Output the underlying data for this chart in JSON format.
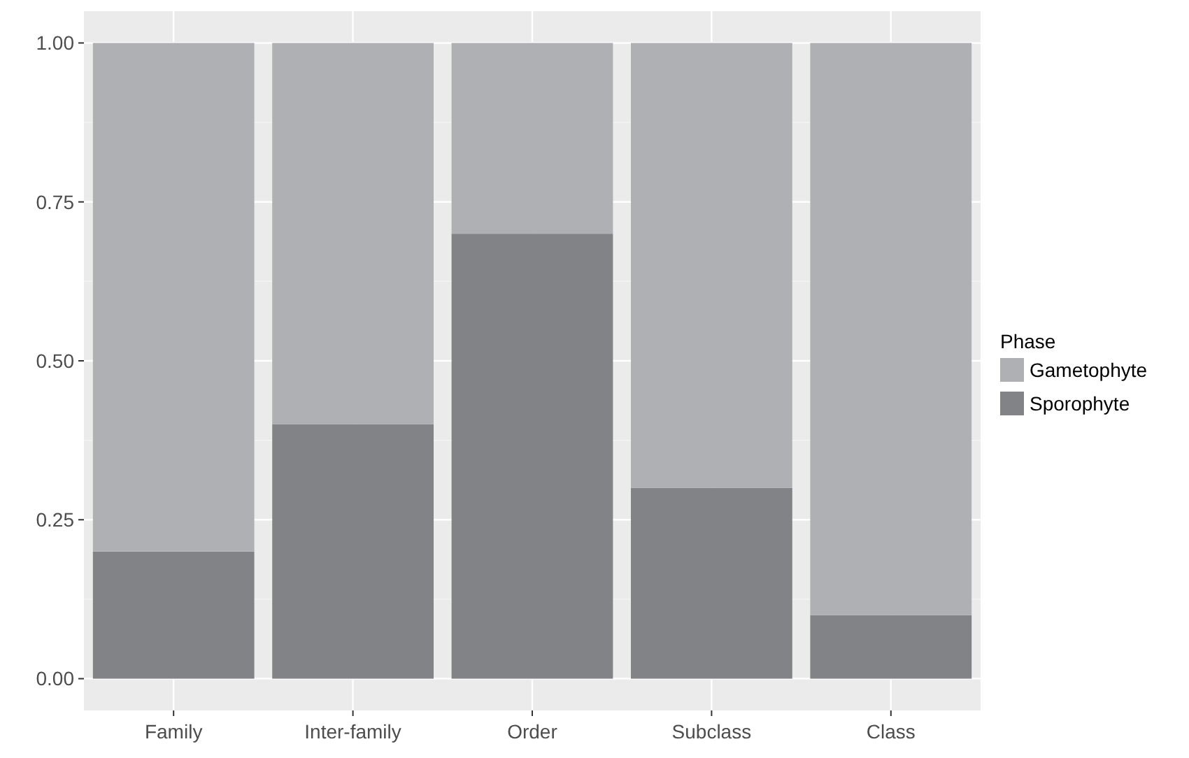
{
  "chart_data": {
    "type": "bar",
    "stacked": true,
    "categories": [
      "Family",
      "Inter-family",
      "Order",
      "Subclass",
      "Class"
    ],
    "series": [
      {
        "name": "Sporophyte",
        "color": "#828387",
        "values": [
          0.2,
          0.4,
          0.7,
          0.3,
          0.1
        ]
      },
      {
        "name": "Gametophyte",
        "color": "#afb0b3",
        "values": [
          0.8,
          0.6,
          0.3,
          0.7,
          0.9
        ]
      }
    ],
    "ylim": [
      -0.05,
      1.05
    ],
    "yticks": [
      {
        "value": 0,
        "label": "0.00"
      },
      {
        "value": 0.25,
        "label": "0.25"
      },
      {
        "value": 0.5,
        "label": "0.50"
      },
      {
        "value": 0.75,
        "label": "0.75"
      },
      {
        "value": 1,
        "label": "1.00"
      }
    ],
    "grid": true,
    "legend": "right",
    "legend_title": "Phase"
  }
}
